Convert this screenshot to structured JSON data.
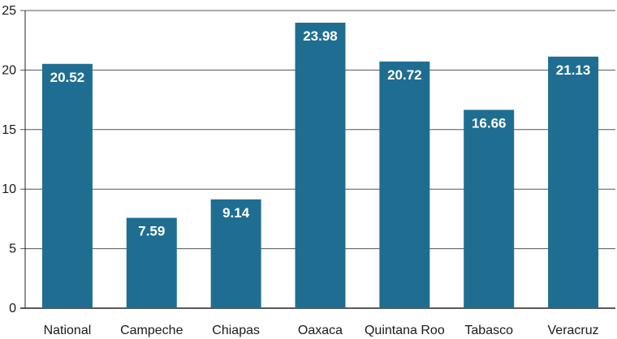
{
  "chart_data": {
    "type": "bar",
    "categories": [
      "National",
      "Campeche",
      "Chiapas",
      "Oaxaca",
      "Quintana Roo",
      "Tabasco",
      "Veracruz"
    ],
    "values": [
      20.52,
      7.59,
      9.14,
      23.98,
      20.72,
      16.66,
      21.13
    ],
    "data_labels": [
      "20.52",
      "7.59",
      "9.14",
      "23.98",
      "20.72",
      "16.66",
      "21.13"
    ],
    "yticks": [
      0,
      5,
      10,
      15,
      20,
      25
    ],
    "ylim": [
      0,
      25
    ],
    "grid": true,
    "legend": "none",
    "bar_color": "#1f6e91",
    "grid_color": "#555555"
  }
}
